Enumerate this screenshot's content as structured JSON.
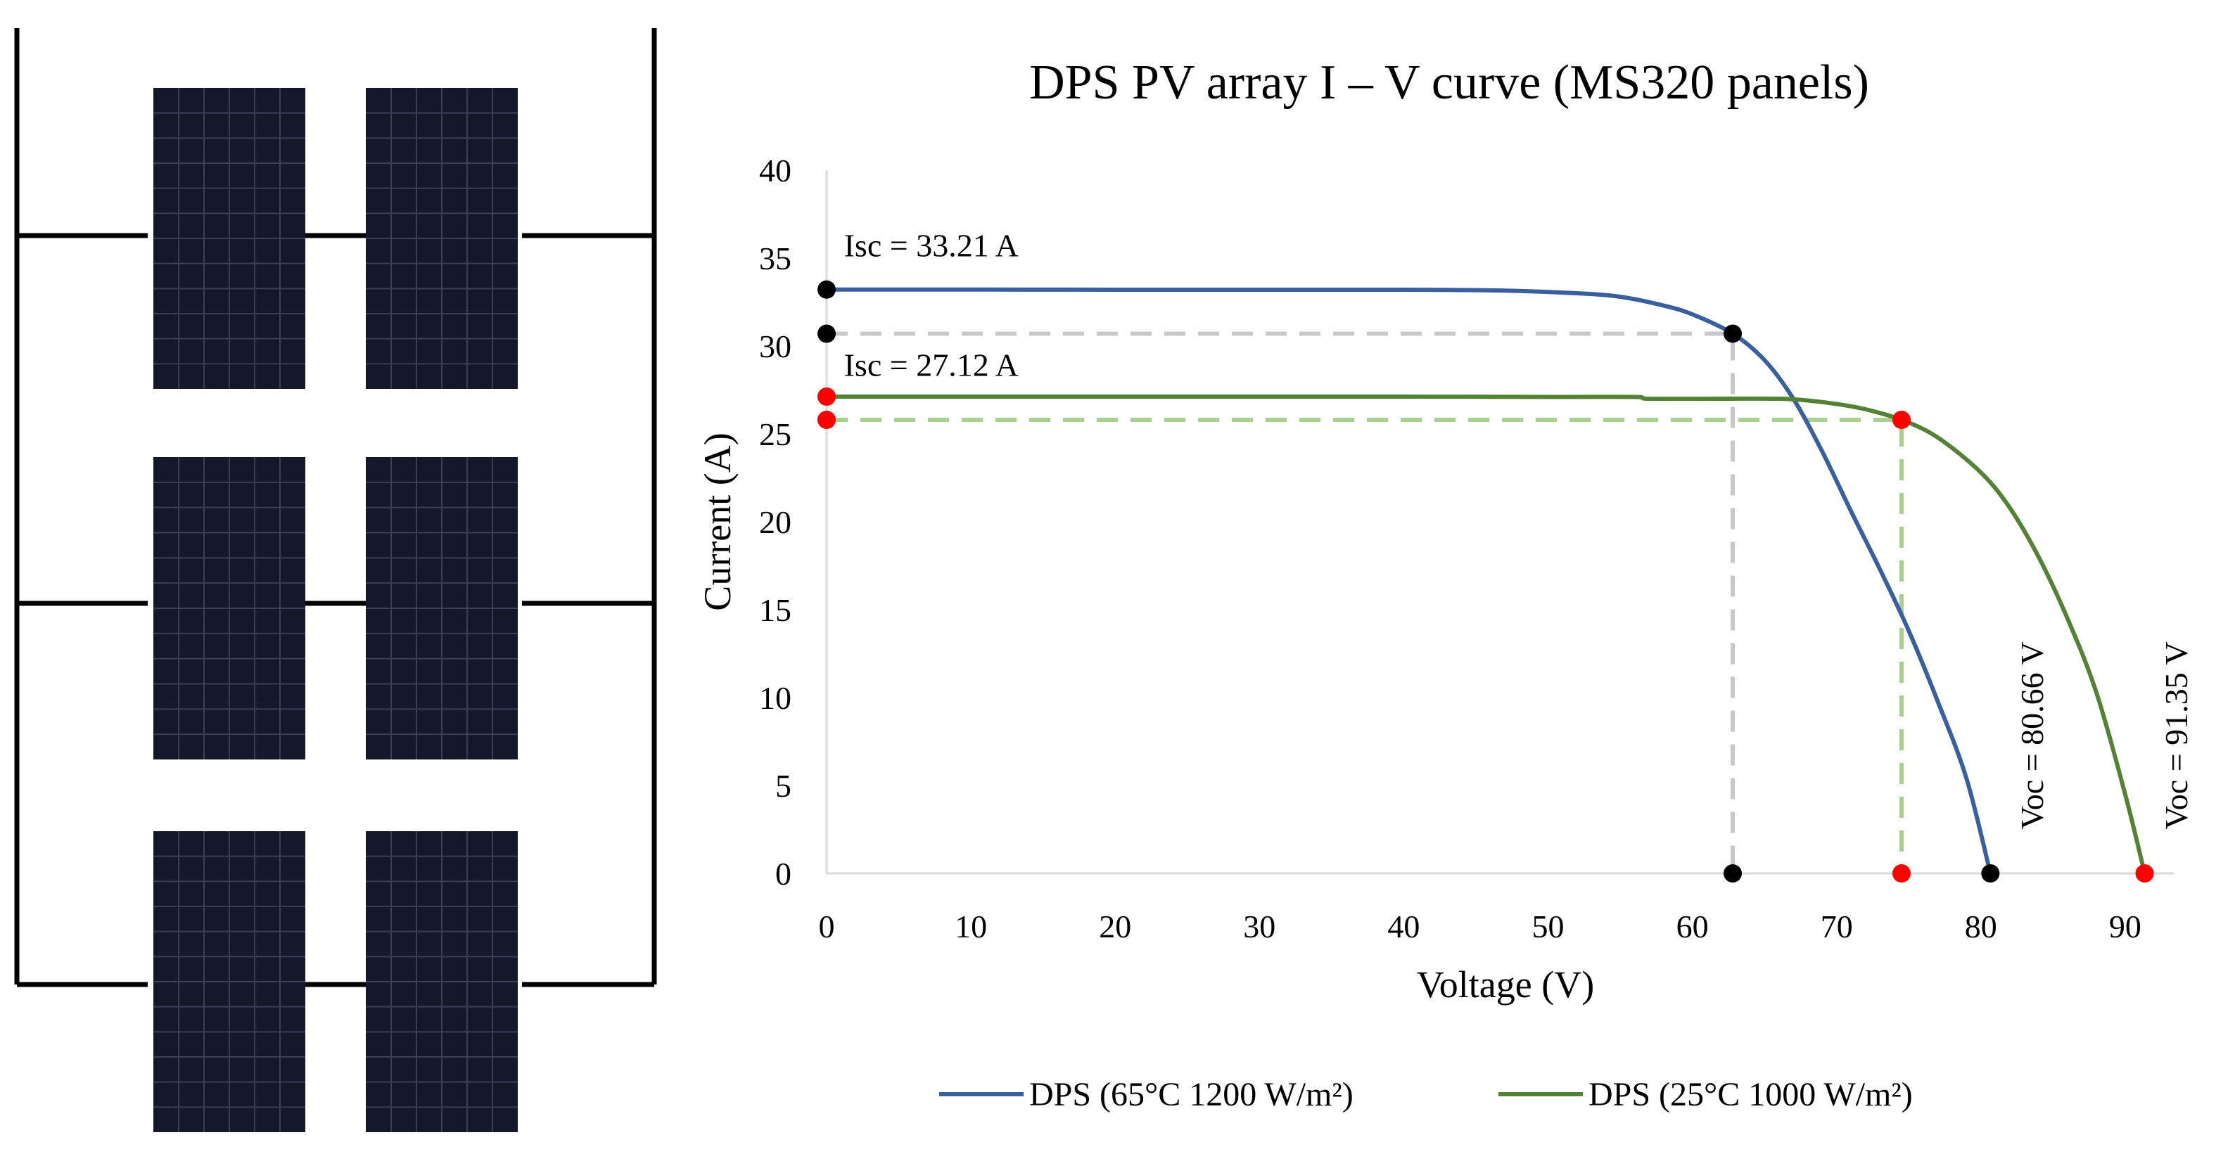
{
  "diagram": {
    "panel_color": "#15172a",
    "panel_grid_color": "#3a3f55",
    "wire_color": "#000000"
  },
  "chart_data": {
    "type": "line",
    "title": "DPS PV array I – V curve (MS320 panels)",
    "xlabel": "Voltage (V)",
    "ylabel": "Current (A)",
    "xlim": [
      0,
      95
    ],
    "ylim": [
      0,
      40
    ],
    "x_ticks": [
      0,
      10,
      20,
      30,
      40,
      50,
      60,
      70,
      80,
      90
    ],
    "y_ticks": [
      0,
      5,
      10,
      15,
      20,
      25,
      30,
      35,
      40
    ],
    "grid": false,
    "legend_position": "bottom",
    "series": [
      {
        "name": "DPS (65°C 1200 W/m²)",
        "color": "#3a5fa0",
        "points": [
          [
            0,
            33.21
          ],
          [
            10,
            33.21
          ],
          [
            20,
            33.2
          ],
          [
            30,
            33.2
          ],
          [
            40,
            33.2
          ],
          [
            47,
            33.15
          ],
          [
            52,
            33.0
          ],
          [
            55,
            32.8
          ],
          [
            58,
            32.3
          ],
          [
            60,
            31.8
          ],
          [
            62.8,
            30.7
          ],
          [
            65,
            29.2
          ],
          [
            67,
            27.0
          ],
          [
            69,
            24.0
          ],
          [
            71,
            20.6
          ],
          [
            73,
            17.3
          ],
          [
            75,
            13.8
          ],
          [
            77,
            9.8
          ],
          [
            79,
            5.4
          ],
          [
            80.66,
            0
          ]
        ]
      },
      {
        "name": "DPS (25°C 1000 W/m²)",
        "color": "#548235",
        "points": [
          [
            0,
            27.12
          ],
          [
            10,
            27.12
          ],
          [
            20,
            27.12
          ],
          [
            30,
            27.12
          ],
          [
            40,
            27.12
          ],
          [
            50,
            27.1
          ],
          [
            56,
            27.1
          ],
          [
            57,
            27.0
          ],
          [
            62,
            27.0
          ],
          [
            66,
            27.0
          ],
          [
            68,
            26.9
          ],
          [
            70,
            26.7
          ],
          [
            72,
            26.4
          ],
          [
            74.5,
            25.8
          ],
          [
            77,
            24.8
          ],
          [
            80,
            22.8
          ],
          [
            82,
            20.8
          ],
          [
            84,
            18.0
          ],
          [
            86,
            14.5
          ],
          [
            88,
            10.3
          ],
          [
            90,
            4.5
          ],
          [
            91.35,
            0
          ]
        ]
      }
    ],
    "markers": [
      {
        "x": 0,
        "y": 33.21,
        "color": "#000000"
      },
      {
        "x": 0,
        "y": 30.7,
        "color": "#000000"
      },
      {
        "x": 62.8,
        "y": 30.7,
        "color": "#000000"
      },
      {
        "x": 62.8,
        "y": 0,
        "color": "#000000"
      },
      {
        "x": 80.66,
        "y": 0,
        "color": "#000000"
      },
      {
        "x": 0,
        "y": 27.12,
        "color": "#ff0000"
      },
      {
        "x": 0,
        "y": 25.8,
        "color": "#ff0000"
      },
      {
        "x": 74.5,
        "y": 25.8,
        "color": "#ff0000"
      },
      {
        "x": 74.5,
        "y": 0,
        "color": "#ff0000"
      },
      {
        "x": 91.35,
        "y": 0,
        "color": "#ff0000"
      }
    ],
    "guides": [
      {
        "color": "#c8c8c8",
        "points": [
          [
            0,
            30.7
          ],
          [
            62.8,
            30.7
          ],
          [
            62.8,
            0
          ]
        ]
      },
      {
        "color": "#a9d18e",
        "points": [
          [
            0,
            25.8
          ],
          [
            74.5,
            25.8
          ],
          [
            74.5,
            0
          ]
        ]
      }
    ],
    "annotations": {
      "isc_1": {
        "text": "Isc = 33.21 A",
        "x": 1.2,
        "y": 35.1
      },
      "isc_2": {
        "text": "Isc = 27.12 A",
        "x": 1.2,
        "y": 28.3
      },
      "voc_1": {
        "text": "Voc = 80.66 V",
        "x": 84.3,
        "y": 2.5
      },
      "voc_2": {
        "text": "Voc = 91.35 V",
        "x": 94.3,
        "y": 2.5
      }
    }
  }
}
